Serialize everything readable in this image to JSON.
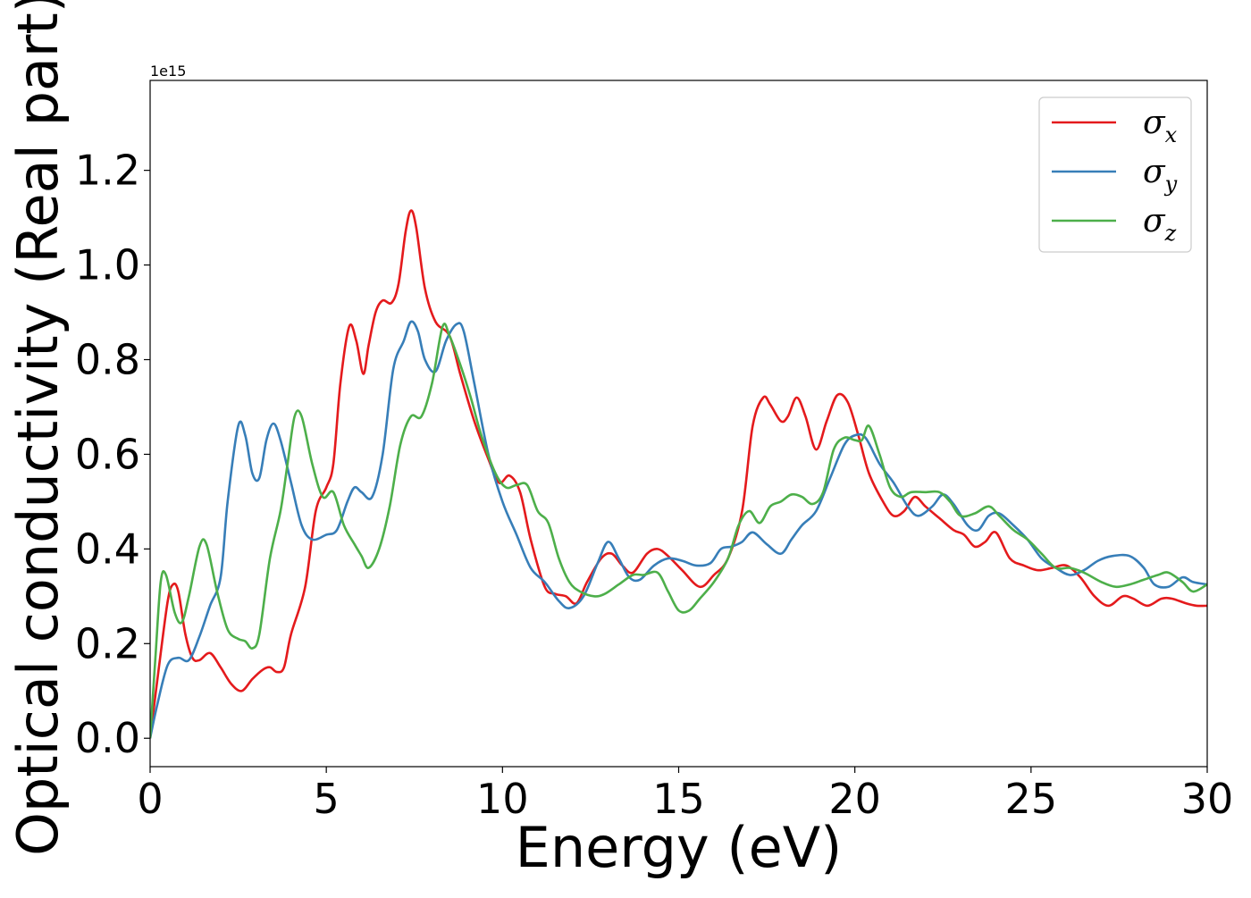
{
  "chart_data": {
    "type": "line",
    "title": "",
    "xlabel": "Energy (eV)",
    "ylabel": "Optical conductivity (Real part)",
    "y_offset_text": "1e15",
    "xlim": [
      0,
      30
    ],
    "ylim": [
      -0.06,
      1.39
    ],
    "xticks": [
      0,
      5,
      10,
      15,
      20,
      25,
      30
    ],
    "xtick_labels": [
      "0",
      "5",
      "10",
      "15",
      "20",
      "25",
      "30"
    ],
    "yticks": [
      0.0,
      0.2,
      0.4,
      0.6,
      0.8,
      1.0,
      1.2
    ],
    "ytick_labels": [
      "0.0",
      "0.2",
      "0.4",
      "0.6",
      "0.8",
      "1.0",
      "1.2"
    ],
    "grid": false,
    "legend_position": "top-right",
    "series": [
      {
        "name": "σx",
        "legend_symbol": "σ",
        "legend_subscript": "x",
        "color": "#e41a1c",
        "points": [
          [
            0.0,
            0.0
          ],
          [
            0.25,
            0.15
          ],
          [
            0.5,
            0.29
          ],
          [
            0.65,
            0.325
          ],
          [
            0.8,
            0.31
          ],
          [
            1.0,
            0.22
          ],
          [
            1.2,
            0.17
          ],
          [
            1.4,
            0.165
          ],
          [
            1.7,
            0.18
          ],
          [
            2.0,
            0.15
          ],
          [
            2.3,
            0.115
          ],
          [
            2.6,
            0.1
          ],
          [
            2.9,
            0.125
          ],
          [
            3.2,
            0.145
          ],
          [
            3.4,
            0.15
          ],
          [
            3.6,
            0.14
          ],
          [
            3.8,
            0.15
          ],
          [
            4.0,
            0.22
          ],
          [
            4.4,
            0.32
          ],
          [
            4.7,
            0.48
          ],
          [
            5.0,
            0.53
          ],
          [
            5.2,
            0.58
          ],
          [
            5.4,
            0.75
          ],
          [
            5.65,
            0.87
          ],
          [
            5.85,
            0.84
          ],
          [
            6.05,
            0.77
          ],
          [
            6.2,
            0.83
          ],
          [
            6.4,
            0.9
          ],
          [
            6.6,
            0.925
          ],
          [
            6.85,
            0.92
          ],
          [
            7.05,
            0.96
          ],
          [
            7.25,
            1.07
          ],
          [
            7.4,
            1.115
          ],
          [
            7.55,
            1.08
          ],
          [
            7.8,
            0.95
          ],
          [
            8.1,
            0.88
          ],
          [
            8.5,
            0.85
          ],
          [
            8.8,
            0.77
          ],
          [
            9.2,
            0.67
          ],
          [
            9.6,
            0.59
          ],
          [
            9.9,
            0.54
          ],
          [
            10.2,
            0.555
          ],
          [
            10.5,
            0.52
          ],
          [
            10.8,
            0.42
          ],
          [
            11.2,
            0.32
          ],
          [
            11.5,
            0.305
          ],
          [
            11.8,
            0.3
          ],
          [
            12.1,
            0.285
          ],
          [
            12.4,
            0.33
          ],
          [
            12.8,
            0.38
          ],
          [
            13.1,
            0.39
          ],
          [
            13.4,
            0.365
          ],
          [
            13.7,
            0.35
          ],
          [
            14.1,
            0.39
          ],
          [
            14.4,
            0.4
          ],
          [
            14.7,
            0.385
          ],
          [
            15.1,
            0.355
          ],
          [
            15.6,
            0.32
          ],
          [
            16.0,
            0.345
          ],
          [
            16.4,
            0.38
          ],
          [
            16.8,
            0.48
          ],
          [
            17.1,
            0.66
          ],
          [
            17.4,
            0.72
          ],
          [
            17.6,
            0.705
          ],
          [
            17.9,
            0.67
          ],
          [
            18.1,
            0.68
          ],
          [
            18.35,
            0.72
          ],
          [
            18.6,
            0.68
          ],
          [
            18.9,
            0.61
          ],
          [
            19.2,
            0.67
          ],
          [
            19.5,
            0.725
          ],
          [
            19.8,
            0.71
          ],
          [
            20.1,
            0.64
          ],
          [
            20.4,
            0.56
          ],
          [
            20.8,
            0.5
          ],
          [
            21.1,
            0.47
          ],
          [
            21.4,
            0.48
          ],
          [
            21.7,
            0.51
          ],
          [
            22.0,
            0.49
          ],
          [
            22.4,
            0.465
          ],
          [
            22.8,
            0.44
          ],
          [
            23.1,
            0.43
          ],
          [
            23.4,
            0.405
          ],
          [
            23.7,
            0.415
          ],
          [
            24.0,
            0.435
          ],
          [
            24.4,
            0.38
          ],
          [
            24.8,
            0.365
          ],
          [
            25.2,
            0.355
          ],
          [
            25.6,
            0.36
          ],
          [
            26.0,
            0.365
          ],
          [
            26.4,
            0.34
          ],
          [
            26.8,
            0.3
          ],
          [
            27.2,
            0.28
          ],
          [
            27.6,
            0.3
          ],
          [
            27.9,
            0.295
          ],
          [
            28.3,
            0.28
          ],
          [
            28.7,
            0.295
          ],
          [
            29.0,
            0.295
          ],
          [
            29.4,
            0.285
          ],
          [
            29.7,
            0.28
          ],
          [
            30.0,
            0.28
          ]
        ]
      },
      {
        "name": "σy",
        "legend_symbol": "σ",
        "legend_subscript": "y",
        "color": "#377eb8",
        "points": [
          [
            0.0,
            0.0
          ],
          [
            0.2,
            0.07
          ],
          [
            0.5,
            0.155
          ],
          [
            0.8,
            0.17
          ],
          [
            1.1,
            0.165
          ],
          [
            1.4,
            0.215
          ],
          [
            1.7,
            0.28
          ],
          [
            2.0,
            0.34
          ],
          [
            2.2,
            0.5
          ],
          [
            2.5,
            0.66
          ],
          [
            2.7,
            0.64
          ],
          [
            2.9,
            0.56
          ],
          [
            3.1,
            0.55
          ],
          [
            3.3,
            0.63
          ],
          [
            3.5,
            0.665
          ],
          [
            3.7,
            0.63
          ],
          [
            4.0,
            0.54
          ],
          [
            4.3,
            0.45
          ],
          [
            4.6,
            0.42
          ],
          [
            5.0,
            0.43
          ],
          [
            5.3,
            0.44
          ],
          [
            5.6,
            0.5
          ],
          [
            5.8,
            0.53
          ],
          [
            6.0,
            0.52
          ],
          [
            6.3,
            0.51
          ],
          [
            6.6,
            0.6
          ],
          [
            6.9,
            0.78
          ],
          [
            7.2,
            0.84
          ],
          [
            7.4,
            0.88
          ],
          [
            7.6,
            0.86
          ],
          [
            7.8,
            0.8
          ],
          [
            8.1,
            0.775
          ],
          [
            8.4,
            0.84
          ],
          [
            8.7,
            0.875
          ],
          [
            8.9,
            0.86
          ],
          [
            9.2,
            0.75
          ],
          [
            9.6,
            0.6
          ],
          [
            10.0,
            0.5
          ],
          [
            10.4,
            0.43
          ],
          [
            10.8,
            0.36
          ],
          [
            11.2,
            0.33
          ],
          [
            11.6,
            0.29
          ],
          [
            11.9,
            0.275
          ],
          [
            12.3,
            0.3
          ],
          [
            12.7,
            0.37
          ],
          [
            13.0,
            0.415
          ],
          [
            13.3,
            0.38
          ],
          [
            13.6,
            0.34
          ],
          [
            13.9,
            0.335
          ],
          [
            14.3,
            0.365
          ],
          [
            14.7,
            0.38
          ],
          [
            15.1,
            0.375
          ],
          [
            15.5,
            0.365
          ],
          [
            15.9,
            0.37
          ],
          [
            16.2,
            0.4
          ],
          [
            16.5,
            0.405
          ],
          [
            16.8,
            0.415
          ],
          [
            17.1,
            0.435
          ],
          [
            17.5,
            0.41
          ],
          [
            17.9,
            0.39
          ],
          [
            18.2,
            0.42
          ],
          [
            18.5,
            0.45
          ],
          [
            18.9,
            0.48
          ],
          [
            19.3,
            0.55
          ],
          [
            19.7,
            0.62
          ],
          [
            20.0,
            0.64
          ],
          [
            20.3,
            0.635
          ],
          [
            20.7,
            0.58
          ],
          [
            21.1,
            0.54
          ],
          [
            21.5,
            0.49
          ],
          [
            21.8,
            0.47
          ],
          [
            22.2,
            0.49
          ],
          [
            22.5,
            0.515
          ],
          [
            22.8,
            0.495
          ],
          [
            23.2,
            0.45
          ],
          [
            23.5,
            0.44
          ],
          [
            23.8,
            0.47
          ],
          [
            24.1,
            0.475
          ],
          [
            24.5,
            0.45
          ],
          [
            24.9,
            0.42
          ],
          [
            25.3,
            0.38
          ],
          [
            25.7,
            0.36
          ],
          [
            26.1,
            0.345
          ],
          [
            26.5,
            0.355
          ],
          [
            26.9,
            0.375
          ],
          [
            27.3,
            0.385
          ],
          [
            27.8,
            0.385
          ],
          [
            28.2,
            0.36
          ],
          [
            28.5,
            0.325
          ],
          [
            28.9,
            0.32
          ],
          [
            29.3,
            0.34
          ],
          [
            29.6,
            0.33
          ],
          [
            30.0,
            0.325
          ]
        ]
      },
      {
        "name": "σz",
        "legend_symbol": "σ",
        "legend_subscript": "z",
        "color": "#4daf4a",
        "points": [
          [
            0.0,
            0.0
          ],
          [
            0.15,
            0.17
          ],
          [
            0.3,
            0.33
          ],
          [
            0.45,
            0.345
          ],
          [
            0.7,
            0.265
          ],
          [
            0.9,
            0.245
          ],
          [
            1.1,
            0.3
          ],
          [
            1.4,
            0.405
          ],
          [
            1.6,
            0.41
          ],
          [
            1.9,
            0.31
          ],
          [
            2.2,
            0.23
          ],
          [
            2.5,
            0.21
          ],
          [
            2.7,
            0.205
          ],
          [
            2.9,
            0.19
          ],
          [
            3.1,
            0.22
          ],
          [
            3.4,
            0.38
          ],
          [
            3.7,
            0.48
          ],
          [
            3.9,
            0.58
          ],
          [
            4.1,
            0.68
          ],
          [
            4.3,
            0.68
          ],
          [
            4.6,
            0.58
          ],
          [
            4.9,
            0.51
          ],
          [
            5.2,
            0.52
          ],
          [
            5.5,
            0.45
          ],
          [
            5.8,
            0.41
          ],
          [
            6.0,
            0.385
          ],
          [
            6.2,
            0.36
          ],
          [
            6.5,
            0.4
          ],
          [
            6.8,
            0.49
          ],
          [
            7.1,
            0.62
          ],
          [
            7.4,
            0.68
          ],
          [
            7.7,
            0.68
          ],
          [
            8.0,
            0.75
          ],
          [
            8.3,
            0.87
          ],
          [
            8.5,
            0.85
          ],
          [
            8.8,
            0.79
          ],
          [
            9.1,
            0.72
          ],
          [
            9.4,
            0.64
          ],
          [
            9.8,
            0.56
          ],
          [
            10.1,
            0.53
          ],
          [
            10.4,
            0.535
          ],
          [
            10.7,
            0.535
          ],
          [
            11.0,
            0.48
          ],
          [
            11.3,
            0.455
          ],
          [
            11.6,
            0.38
          ],
          [
            11.9,
            0.33
          ],
          [
            12.2,
            0.31
          ],
          [
            12.6,
            0.3
          ],
          [
            12.9,
            0.305
          ],
          [
            13.3,
            0.325
          ],
          [
            13.7,
            0.345
          ],
          [
            14.0,
            0.345
          ],
          [
            14.4,
            0.35
          ],
          [
            14.7,
            0.31
          ],
          [
            15.0,
            0.27
          ],
          [
            15.3,
            0.27
          ],
          [
            15.6,
            0.295
          ],
          [
            16.0,
            0.33
          ],
          [
            16.4,
            0.38
          ],
          [
            16.7,
            0.45
          ],
          [
            17.0,
            0.48
          ],
          [
            17.3,
            0.455
          ],
          [
            17.6,
            0.49
          ],
          [
            17.9,
            0.5
          ],
          [
            18.2,
            0.515
          ],
          [
            18.5,
            0.51
          ],
          [
            18.8,
            0.495
          ],
          [
            19.1,
            0.52
          ],
          [
            19.4,
            0.61
          ],
          [
            19.7,
            0.635
          ],
          [
            20.0,
            0.63
          ],
          [
            20.2,
            0.63
          ],
          [
            20.4,
            0.66
          ],
          [
            20.7,
            0.6
          ],
          [
            21.0,
            0.53
          ],
          [
            21.3,
            0.51
          ],
          [
            21.6,
            0.52
          ],
          [
            22.0,
            0.52
          ],
          [
            22.4,
            0.52
          ],
          [
            22.7,
            0.5
          ],
          [
            23.0,
            0.47
          ],
          [
            23.4,
            0.475
          ],
          [
            23.8,
            0.49
          ],
          [
            24.1,
            0.47
          ],
          [
            24.5,
            0.44
          ],
          [
            24.9,
            0.42
          ],
          [
            25.3,
            0.39
          ],
          [
            25.7,
            0.36
          ],
          [
            26.1,
            0.36
          ],
          [
            26.5,
            0.35
          ],
          [
            27.0,
            0.33
          ],
          [
            27.4,
            0.32
          ],
          [
            27.8,
            0.325
          ],
          [
            28.2,
            0.335
          ],
          [
            28.6,
            0.345
          ],
          [
            28.9,
            0.35
          ],
          [
            29.3,
            0.33
          ],
          [
            29.6,
            0.31
          ],
          [
            30.0,
            0.325
          ]
        ]
      }
    ]
  }
}
